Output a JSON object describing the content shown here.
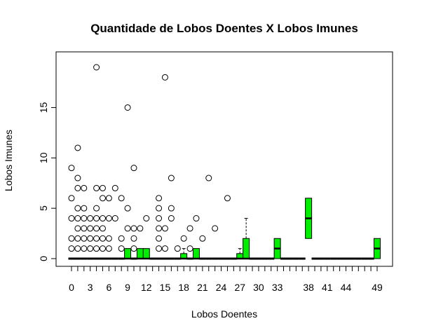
{
  "chart_data": {
    "type": "boxplot",
    "title": "Quantidade de Lobos Doentes X Lobos Imunes",
    "xlabel": "Lobos Doentes",
    "ylabel": "Lobos Imunes",
    "ylim": [
      0,
      19
    ],
    "y_ticks": [
      0,
      5,
      10,
      15
    ],
    "grid": false,
    "box_color": "#00ee00",
    "categories": [
      "0",
      "1",
      "2",
      "3",
      "4",
      "5",
      "6",
      "7",
      "8",
      "9",
      "10",
      "11",
      "12",
      "13",
      "14",
      "15",
      "16",
      "17",
      "18",
      "19",
      "20",
      "21",
      "22",
      "23",
      "24",
      "25",
      "26",
      "27",
      "28",
      "29",
      "30",
      "31",
      "32",
      "33",
      "34",
      "35",
      "36",
      "37",
      "38",
      "39",
      "40",
      "41",
      "42",
      "43",
      "44",
      "45",
      "46",
      "47",
      "48",
      "49"
    ],
    "x_tick_labels": [
      "0",
      "3",
      "6",
      "9",
      "12",
      "15",
      "18",
      "21",
      "24",
      "27",
      "30",
      "33",
      "38",
      "41",
      "44",
      "49"
    ],
    "x_tick_categories": [
      "0",
      "3",
      "6",
      "9",
      "12",
      "15",
      "18",
      "21",
      "24",
      "27",
      "30",
      "33",
      "38",
      "41",
      "44",
      "49"
    ],
    "nonflat_boxes": [
      {
        "category": "9",
        "q1": 0,
        "median": 0,
        "q3": 1,
        "whisker_high": 1
      },
      {
        "category": "11",
        "q1": 0,
        "median": 0,
        "q3": 1,
        "whisker_high": 1
      },
      {
        "category": "12",
        "q1": 0,
        "median": 0,
        "q3": 1,
        "whisker_high": 1
      },
      {
        "category": "18",
        "q1": 0,
        "median": 0,
        "q3": 0.5,
        "whisker_high": 1
      },
      {
        "category": "20",
        "q1": 0,
        "median": 0,
        "q3": 1,
        "whisker_high": 1
      },
      {
        "category": "27",
        "q1": 0,
        "median": 0,
        "q3": 0.5,
        "whisker_high": 1
      },
      {
        "category": "28",
        "q1": 0,
        "median": 0,
        "q3": 2,
        "whisker_high": 4
      },
      {
        "category": "33",
        "q1": 0,
        "median": 1,
        "q3": 2,
        "whisker_high": 2
      },
      {
        "category": "38",
        "q1": 2,
        "median": 4,
        "q3": 6,
        "whisker_high": 6
      },
      {
        "category": "49",
        "q1": 0,
        "median": 1,
        "q3": 2,
        "whisker_high": 2
      }
    ],
    "flat_categories": [
      "0",
      "1",
      "2",
      "3",
      "4",
      "5",
      "6",
      "7",
      "8",
      "10",
      "13",
      "14",
      "15",
      "16",
      "17",
      "19",
      "21",
      "22",
      "23",
      "24",
      "25",
      "26",
      "29",
      "30",
      "31",
      "32",
      "34",
      "35",
      "36",
      "37",
      "39",
      "40",
      "41",
      "42",
      "43",
      "44",
      "45",
      "46",
      "47",
      "48"
    ],
    "outliers": [
      {
        "category": "0",
        "values": [
          1,
          2,
          4,
          6,
          9
        ]
      },
      {
        "category": "1",
        "values": [
          1,
          2,
          3,
          4,
          5,
          7,
          8,
          11
        ]
      },
      {
        "category": "2",
        "values": [
          1,
          2,
          3,
          4,
          5,
          7
        ]
      },
      {
        "category": "3",
        "values": [
          1,
          2,
          3,
          4
        ]
      },
      {
        "category": "4",
        "values": [
          1,
          2,
          3,
          4,
          5,
          7,
          19
        ]
      },
      {
        "category": "5",
        "values": [
          1,
          2,
          3,
          4,
          6,
          7
        ]
      },
      {
        "category": "6",
        "values": [
          1,
          2,
          4,
          6
        ]
      },
      {
        "category": "7",
        "values": [
          4,
          7
        ]
      },
      {
        "category": "8",
        "values": [
          1,
          2,
          6
        ]
      },
      {
        "category": "9",
        "values": [
          3,
          5,
          15
        ]
      },
      {
        "category": "10",
        "values": [
          1,
          2,
          3,
          9
        ]
      },
      {
        "category": "11",
        "values": [
          3
        ]
      },
      {
        "category": "12",
        "values": [
          4
        ]
      },
      {
        "category": "14",
        "values": [
          1,
          2,
          3,
          4,
          5,
          6
        ]
      },
      {
        "category": "15",
        "values": [
          1,
          3,
          18
        ]
      },
      {
        "category": "16",
        "values": [
          4,
          5,
          8
        ]
      },
      {
        "category": "17",
        "values": [
          1
        ]
      },
      {
        "category": "18",
        "values": [
          2
        ]
      },
      {
        "category": "19",
        "values": [
          1,
          3
        ]
      },
      {
        "category": "20",
        "values": [
          4
        ]
      },
      {
        "category": "21",
        "values": [
          2
        ]
      },
      {
        "category": "22",
        "values": [
          8
        ]
      },
      {
        "category": "23",
        "values": [
          3
        ]
      },
      {
        "category": "25",
        "values": [
          6
        ]
      }
    ]
  }
}
